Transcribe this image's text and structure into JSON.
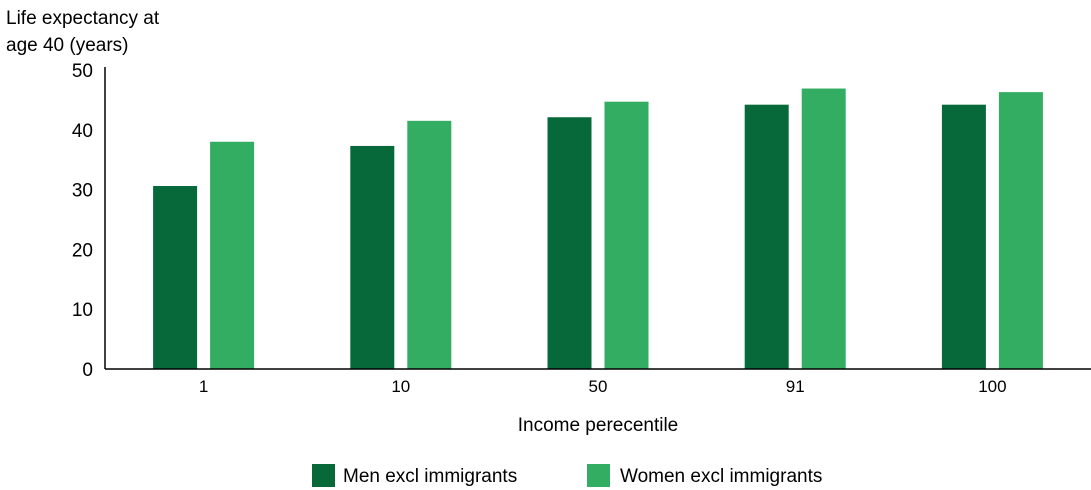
{
  "chart_data": {
    "type": "bar",
    "ylabel_lines": [
      "Life expectancy at",
      "age 40 (years)"
    ],
    "xlabel": "Income perecentile",
    "categories": [
      "1",
      "10",
      "50",
      "91",
      "100"
    ],
    "ylim": [
      0,
      50
    ],
    "yticks": [
      0,
      10,
      20,
      30,
      40,
      50
    ],
    "grid": false,
    "legend_position": "bottom",
    "series": [
      {
        "name": "Men excl immigrants",
        "color": "#07693a",
        "values": [
          30.6,
          37.3,
          42.1,
          44.2,
          44.2
        ]
      },
      {
        "name": "Women excl immigrants",
        "color": "#33ad62",
        "values": [
          38.0,
          41.5,
          44.7,
          46.9,
          46.3
        ]
      }
    ]
  }
}
